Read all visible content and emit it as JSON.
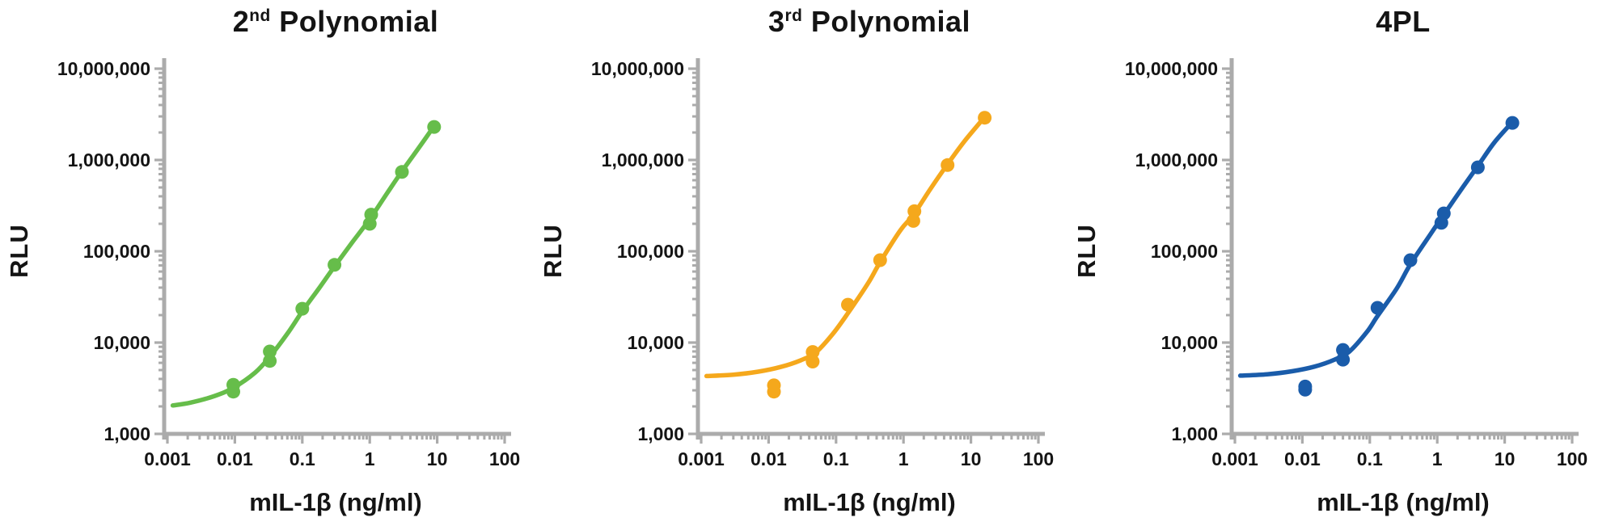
{
  "style": {
    "background": "#ffffff",
    "axis_color": "#ababab",
    "text_color": "#141414"
  },
  "chart_data": [
    {
      "type": "scatter",
      "title": {
        "base": "2",
        "sup": "nd",
        "rest": " Polynomial",
        "full": "2nd Polynomial"
      },
      "color": "#66bd4a",
      "x_axis": {
        "label": "mIL-1β (ng/ml)",
        "scale": "log",
        "min": 0.001,
        "max": 100,
        "ticks": [
          {
            "v": 0.001,
            "label": "0.001"
          },
          {
            "v": 0.01,
            "label": "0.01"
          },
          {
            "v": 0.1,
            "label": "0.1"
          },
          {
            "v": 1,
            "label": "1"
          },
          {
            "v": 10,
            "label": "10"
          },
          {
            "v": 100,
            "label": "100"
          }
        ]
      },
      "y_axis": {
        "label": "RLU",
        "scale": "log",
        "min": 1000,
        "max": 10000000,
        "ticks": [
          {
            "v": 1000,
            "label": "1,000"
          },
          {
            "v": 10000,
            "label": "10,000"
          },
          {
            "v": 100000,
            "label": "100,000"
          },
          {
            "v": 1000000,
            "label": "1,000,000"
          },
          {
            "v": 10000000,
            "label": "10,000,000"
          }
        ]
      },
      "points": [
        [
          0.0095,
          2900
        ],
        [
          0.0095,
          3450
        ],
        [
          0.033,
          6300
        ],
        [
          0.033,
          8000
        ],
        [
          0.1,
          23500
        ],
        [
          0.3,
          71000
        ],
        [
          1.0,
          200000
        ],
        [
          1.05,
          252000
        ],
        [
          3,
          740000
        ],
        [
          9,
          2300000
        ]
      ],
      "curve": [
        [
          0.0012,
          2050
        ],
        [
          0.0022,
          2200
        ],
        [
          0.005,
          2600
        ],
        [
          0.0095,
          3200
        ],
        [
          0.02,
          4700
        ],
        [
          0.033,
          7000
        ],
        [
          0.06,
          12500
        ],
        [
          0.1,
          22000
        ],
        [
          0.18,
          40000
        ],
        [
          0.3,
          68000
        ],
        [
          0.55,
          125000
        ],
        [
          1.0,
          225000
        ],
        [
          1.8,
          430000
        ],
        [
          3,
          750000
        ],
        [
          5.5,
          1400000
        ],
        [
          9,
          2350000
        ]
      ]
    },
    {
      "type": "scatter",
      "title": {
        "base": "3",
        "sup": "rd",
        "rest": " Polynomial",
        "full": "3rd Polynomial"
      },
      "color": "#f5a81c",
      "x_axis": {
        "label": "mIL-1β (ng/ml)",
        "scale": "log",
        "min": 0.001,
        "max": 100,
        "ticks": [
          {
            "v": 0.001,
            "label": "0.001"
          },
          {
            "v": 0.01,
            "label": "0.01"
          },
          {
            "v": 0.1,
            "label": "0.1"
          },
          {
            "v": 1,
            "label": "1"
          },
          {
            "v": 10,
            "label": "10"
          },
          {
            "v": 100,
            "label": "100"
          }
        ]
      },
      "y_axis": {
        "label": "RLU",
        "scale": "log",
        "min": 1000,
        "max": 10000000,
        "ticks": [
          {
            "v": 1000,
            "label": "1,000"
          },
          {
            "v": 10000,
            "label": "10,000"
          },
          {
            "v": 100000,
            "label": "100,000"
          },
          {
            "v": 1000000,
            "label": "1,000,000"
          },
          {
            "v": 10000000,
            "label": "10,000,000"
          }
        ]
      },
      "points": [
        [
          0.012,
          2900
        ],
        [
          0.012,
          3400
        ],
        [
          0.045,
          6200
        ],
        [
          0.045,
          7900
        ],
        [
          0.15,
          26000
        ],
        [
          0.45,
          80000
        ],
        [
          1.4,
          215000
        ],
        [
          1.45,
          275000
        ],
        [
          4.5,
          880000
        ],
        [
          16,
          2900000
        ]
      ],
      "curve": [
        [
          0.0012,
          4300
        ],
        [
          0.003,
          4450
        ],
        [
          0.007,
          4800
        ],
        [
          0.015,
          5400
        ],
        [
          0.03,
          6400
        ],
        [
          0.05,
          7800
        ],
        [
          0.09,
          12500
        ],
        [
          0.15,
          21000
        ],
        [
          0.3,
          45000
        ],
        [
          0.45,
          76000
        ],
        [
          0.9,
          170000
        ],
        [
          1.4,
          250000
        ],
        [
          2.5,
          480000
        ],
        [
          4.5,
          900000
        ],
        [
          8,
          1600000
        ],
        [
          16,
          2950000
        ]
      ]
    },
    {
      "type": "scatter",
      "title": {
        "base": "4PL",
        "sup": "",
        "rest": "",
        "full": "4PL"
      },
      "color": "#1a5caa",
      "x_axis": {
        "label": "mIL-1β (ng/ml)",
        "scale": "log",
        "min": 0.001,
        "max": 100,
        "ticks": [
          {
            "v": 0.001,
            "label": "0.001"
          },
          {
            "v": 0.01,
            "label": "0.01"
          },
          {
            "v": 0.1,
            "label": "0.1"
          },
          {
            "v": 1,
            "label": "1"
          },
          {
            "v": 10,
            "label": "10"
          },
          {
            "v": 100,
            "label": "100"
          }
        ]
      },
      "y_axis": {
        "label": "RLU",
        "scale": "log",
        "min": 1000,
        "max": 10000000,
        "ticks": [
          {
            "v": 1000,
            "label": "1,000"
          },
          {
            "v": 10000,
            "label": "10,000"
          },
          {
            "v": 100000,
            "label": "100,000"
          },
          {
            "v": 1000000,
            "label": "1,000,000"
          },
          {
            "v": 10000000,
            "label": "10,000,000"
          }
        ]
      },
      "points": [
        [
          0.011,
          3050
        ],
        [
          0.011,
          3300
        ],
        [
          0.04,
          6500
        ],
        [
          0.04,
          8300
        ],
        [
          0.13,
          24000
        ],
        [
          0.4,
          80000
        ],
        [
          1.15,
          205000
        ],
        [
          1.25,
          260000
        ],
        [
          4,
          830000
        ],
        [
          13,
          2550000
        ]
      ],
      "curve": [
        [
          0.0012,
          4350
        ],
        [
          0.003,
          4500
        ],
        [
          0.007,
          4850
        ],
        [
          0.015,
          5450
        ],
        [
          0.03,
          6500
        ],
        [
          0.05,
          8000
        ],
        [
          0.09,
          13000
        ],
        [
          0.13,
          19500
        ],
        [
          0.25,
          39000
        ],
        [
          0.4,
          72000
        ],
        [
          0.8,
          155000
        ],
        [
          1.2,
          240000
        ],
        [
          2.2,
          460000
        ],
        [
          4,
          860000
        ],
        [
          7,
          1550000
        ],
        [
          13,
          2600000
        ]
      ]
    }
  ]
}
